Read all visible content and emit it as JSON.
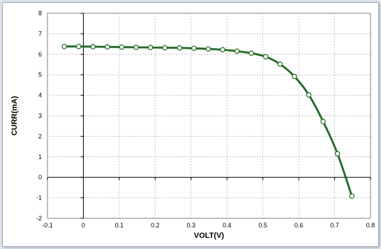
{
  "chart_data": {
    "type": "line",
    "title": "",
    "xlabel": "VOLT(V)",
    "ylabel": "CURR(mA)",
    "xlim": [
      -0.1,
      0.8
    ],
    "ylim": [
      -2,
      8
    ],
    "xticks": [
      "-0.1",
      "0",
      "0.1",
      "0.2",
      "0.3",
      "0.4",
      "0.5",
      "0.6",
      "0.7",
      "0.8"
    ],
    "xtick_values": [
      -0.1,
      0,
      0.1,
      0.2,
      0.3,
      0.4,
      0.5,
      0.6,
      0.7,
      0.8
    ],
    "yticks": [
      "-2",
      "-1",
      "0",
      "1",
      "2",
      "3",
      "4",
      "5",
      "6",
      "7",
      "8"
    ],
    "ytick_values": [
      -2,
      -1,
      0,
      1,
      2,
      3,
      4,
      5,
      6,
      7,
      8
    ],
    "grid": true,
    "legend": "none",
    "series": [
      {
        "color": "#1e6b1e",
        "marker_fill": "#ffffff",
        "x": [
          -0.053,
          -0.013,
          0.027,
          0.067,
          0.107,
          0.147,
          0.187,
          0.227,
          0.268,
          0.308,
          0.348,
          0.388,
          0.428,
          0.468,
          0.508,
          0.548,
          0.588,
          0.628,
          0.668,
          0.708,
          0.748
        ],
        "y": [
          6.38,
          6.38,
          6.37,
          6.36,
          6.35,
          6.34,
          6.33,
          6.32,
          6.31,
          6.29,
          6.26,
          6.22,
          6.15,
          6.05,
          5.88,
          5.52,
          4.92,
          4.02,
          2.72,
          1.15,
          -0.92
        ]
      }
    ]
  }
}
